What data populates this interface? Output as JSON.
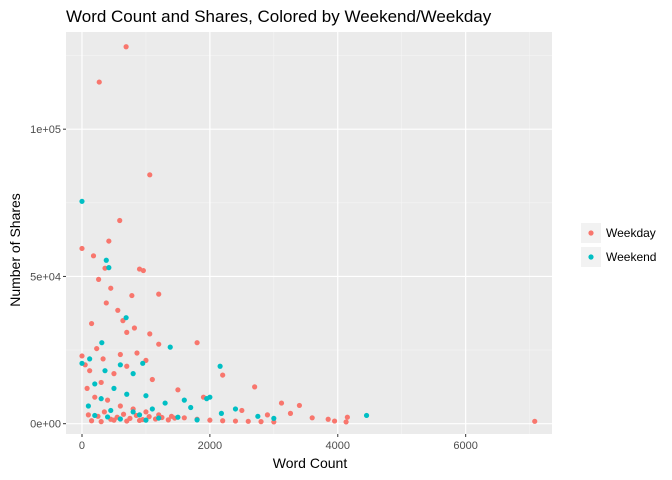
{
  "chart_data": {
    "type": "scatter",
    "title": "Word Count and Shares, Colored by Weekend/Weekday",
    "xlabel": "Word Count",
    "ylabel": "Number of Shares",
    "xlim": [
      -250,
      7350
    ],
    "ylim": [
      -3500,
      133000
    ],
    "x_ticks": [
      0,
      2000,
      4000,
      6000
    ],
    "x_tick_labels": [
      "0",
      "2000",
      "4000",
      "6000"
    ],
    "y_ticks": [
      0,
      50000,
      100000
    ],
    "y_tick_labels": [
      "0e+00",
      "5e+04",
      "1e+05"
    ],
    "grid": true,
    "background": "#ebebeb",
    "legend_position": "right",
    "series": [
      {
        "name": "Weekday",
        "color": "#f8766d",
        "points": [
          [
            690,
            128000
          ],
          [
            270,
            116000
          ],
          [
            1060,
            84500
          ],
          [
            590,
            69000
          ],
          [
            0,
            59500
          ],
          [
            420,
            62000
          ],
          [
            900,
            52500
          ],
          [
            960,
            52000
          ],
          [
            180,
            57000
          ],
          [
            360,
            52800
          ],
          [
            260,
            49000
          ],
          [
            450,
            46000
          ],
          [
            1200,
            44000
          ],
          [
            780,
            43500
          ],
          [
            380,
            41000
          ],
          [
            560,
            38500
          ],
          [
            640,
            35000
          ],
          [
            150,
            34000
          ],
          [
            820,
            32500
          ],
          [
            1060,
            30500
          ],
          [
            700,
            31000
          ],
          [
            1800,
            27500
          ],
          [
            1200,
            27000
          ],
          [
            230,
            25500
          ],
          [
            860,
            24000
          ],
          [
            0,
            23000
          ],
          [
            330,
            22000
          ],
          [
            1000,
            21500
          ],
          [
            600,
            23500
          ],
          [
            2200,
            16500
          ],
          [
            2700,
            12500
          ],
          [
            3120,
            7000
          ],
          [
            3400,
            6200
          ],
          [
            3260,
            3500
          ],
          [
            3600,
            2000
          ],
          [
            3850,
            1500
          ],
          [
            4150,
            2200
          ],
          [
            4130,
            600
          ],
          [
            3950,
            900
          ],
          [
            7080,
            800
          ],
          [
            2900,
            3000
          ],
          [
            2500,
            4500
          ],
          [
            1900,
            9000
          ],
          [
            1500,
            11500
          ],
          [
            1100,
            15000
          ],
          [
            50,
            20000
          ],
          [
            120,
            18000
          ],
          [
            500,
            17000
          ],
          [
            700,
            19500
          ],
          [
            300,
            14000
          ],
          [
            80,
            12000
          ],
          [
            200,
            9000
          ],
          [
            400,
            8000
          ],
          [
            600,
            6000
          ],
          [
            800,
            5000
          ],
          [
            1000,
            4000
          ],
          [
            1200,
            3000
          ],
          [
            1400,
            2500
          ],
          [
            1600,
            2000
          ],
          [
            1800,
            1500
          ],
          [
            2000,
            1200
          ],
          [
            2200,
            1000
          ],
          [
            2400,
            900
          ],
          [
            2600,
            800
          ],
          [
            2800,
            700
          ],
          [
            3000,
            600
          ],
          [
            100,
            3000
          ],
          [
            250,
            2500
          ],
          [
            350,
            4000
          ],
          [
            450,
            1500
          ],
          [
            550,
            2200
          ],
          [
            650,
            3200
          ],
          [
            750,
            1800
          ],
          [
            850,
            2800
          ],
          [
            950,
            1400
          ],
          [
            1050,
            2400
          ],
          [
            1150,
            1600
          ],
          [
            1250,
            2100
          ],
          [
            1350,
            1300
          ],
          [
            1450,
            1900
          ],
          [
            150,
            1000
          ],
          [
            300,
            700
          ],
          [
            500,
            1200
          ],
          [
            700,
            900
          ],
          [
            900,
            1100
          ]
        ]
      },
      {
        "name": "Weekend",
        "color": "#00bfc4",
        "points": [
          [
            0,
            75500
          ],
          [
            380,
            55500
          ],
          [
            420,
            53000
          ],
          [
            690,
            36000
          ],
          [
            310,
            27500
          ],
          [
            1380,
            26000
          ],
          [
            0,
            20500
          ],
          [
            600,
            20000
          ],
          [
            950,
            20500
          ],
          [
            2160,
            19500
          ],
          [
            120,
            22000
          ],
          [
            360,
            18000
          ],
          [
            800,
            17000
          ],
          [
            200,
            13500
          ],
          [
            500,
            12000
          ],
          [
            1000,
            9500
          ],
          [
            1600,
            8000
          ],
          [
            1950,
            8500
          ],
          [
            2000,
            9000
          ],
          [
            2400,
            5000
          ],
          [
            2180,
            3500
          ],
          [
            2750,
            2500
          ],
          [
            3000,
            1800
          ],
          [
            4450,
            2800
          ],
          [
            1700,
            5500
          ],
          [
            1300,
            7000
          ],
          [
            700,
            10000
          ],
          [
            300,
            8500
          ],
          [
            100,
            6000
          ],
          [
            450,
            4500
          ],
          [
            900,
            3000
          ],
          [
            1100,
            5000
          ],
          [
            1500,
            2200
          ],
          [
            1800,
            1300
          ],
          [
            600,
            1600
          ],
          [
            200,
            2800
          ],
          [
            800,
            4000
          ],
          [
            1200,
            1900
          ],
          [
            400,
            2300
          ],
          [
            1000,
            1200
          ]
        ]
      }
    ]
  }
}
